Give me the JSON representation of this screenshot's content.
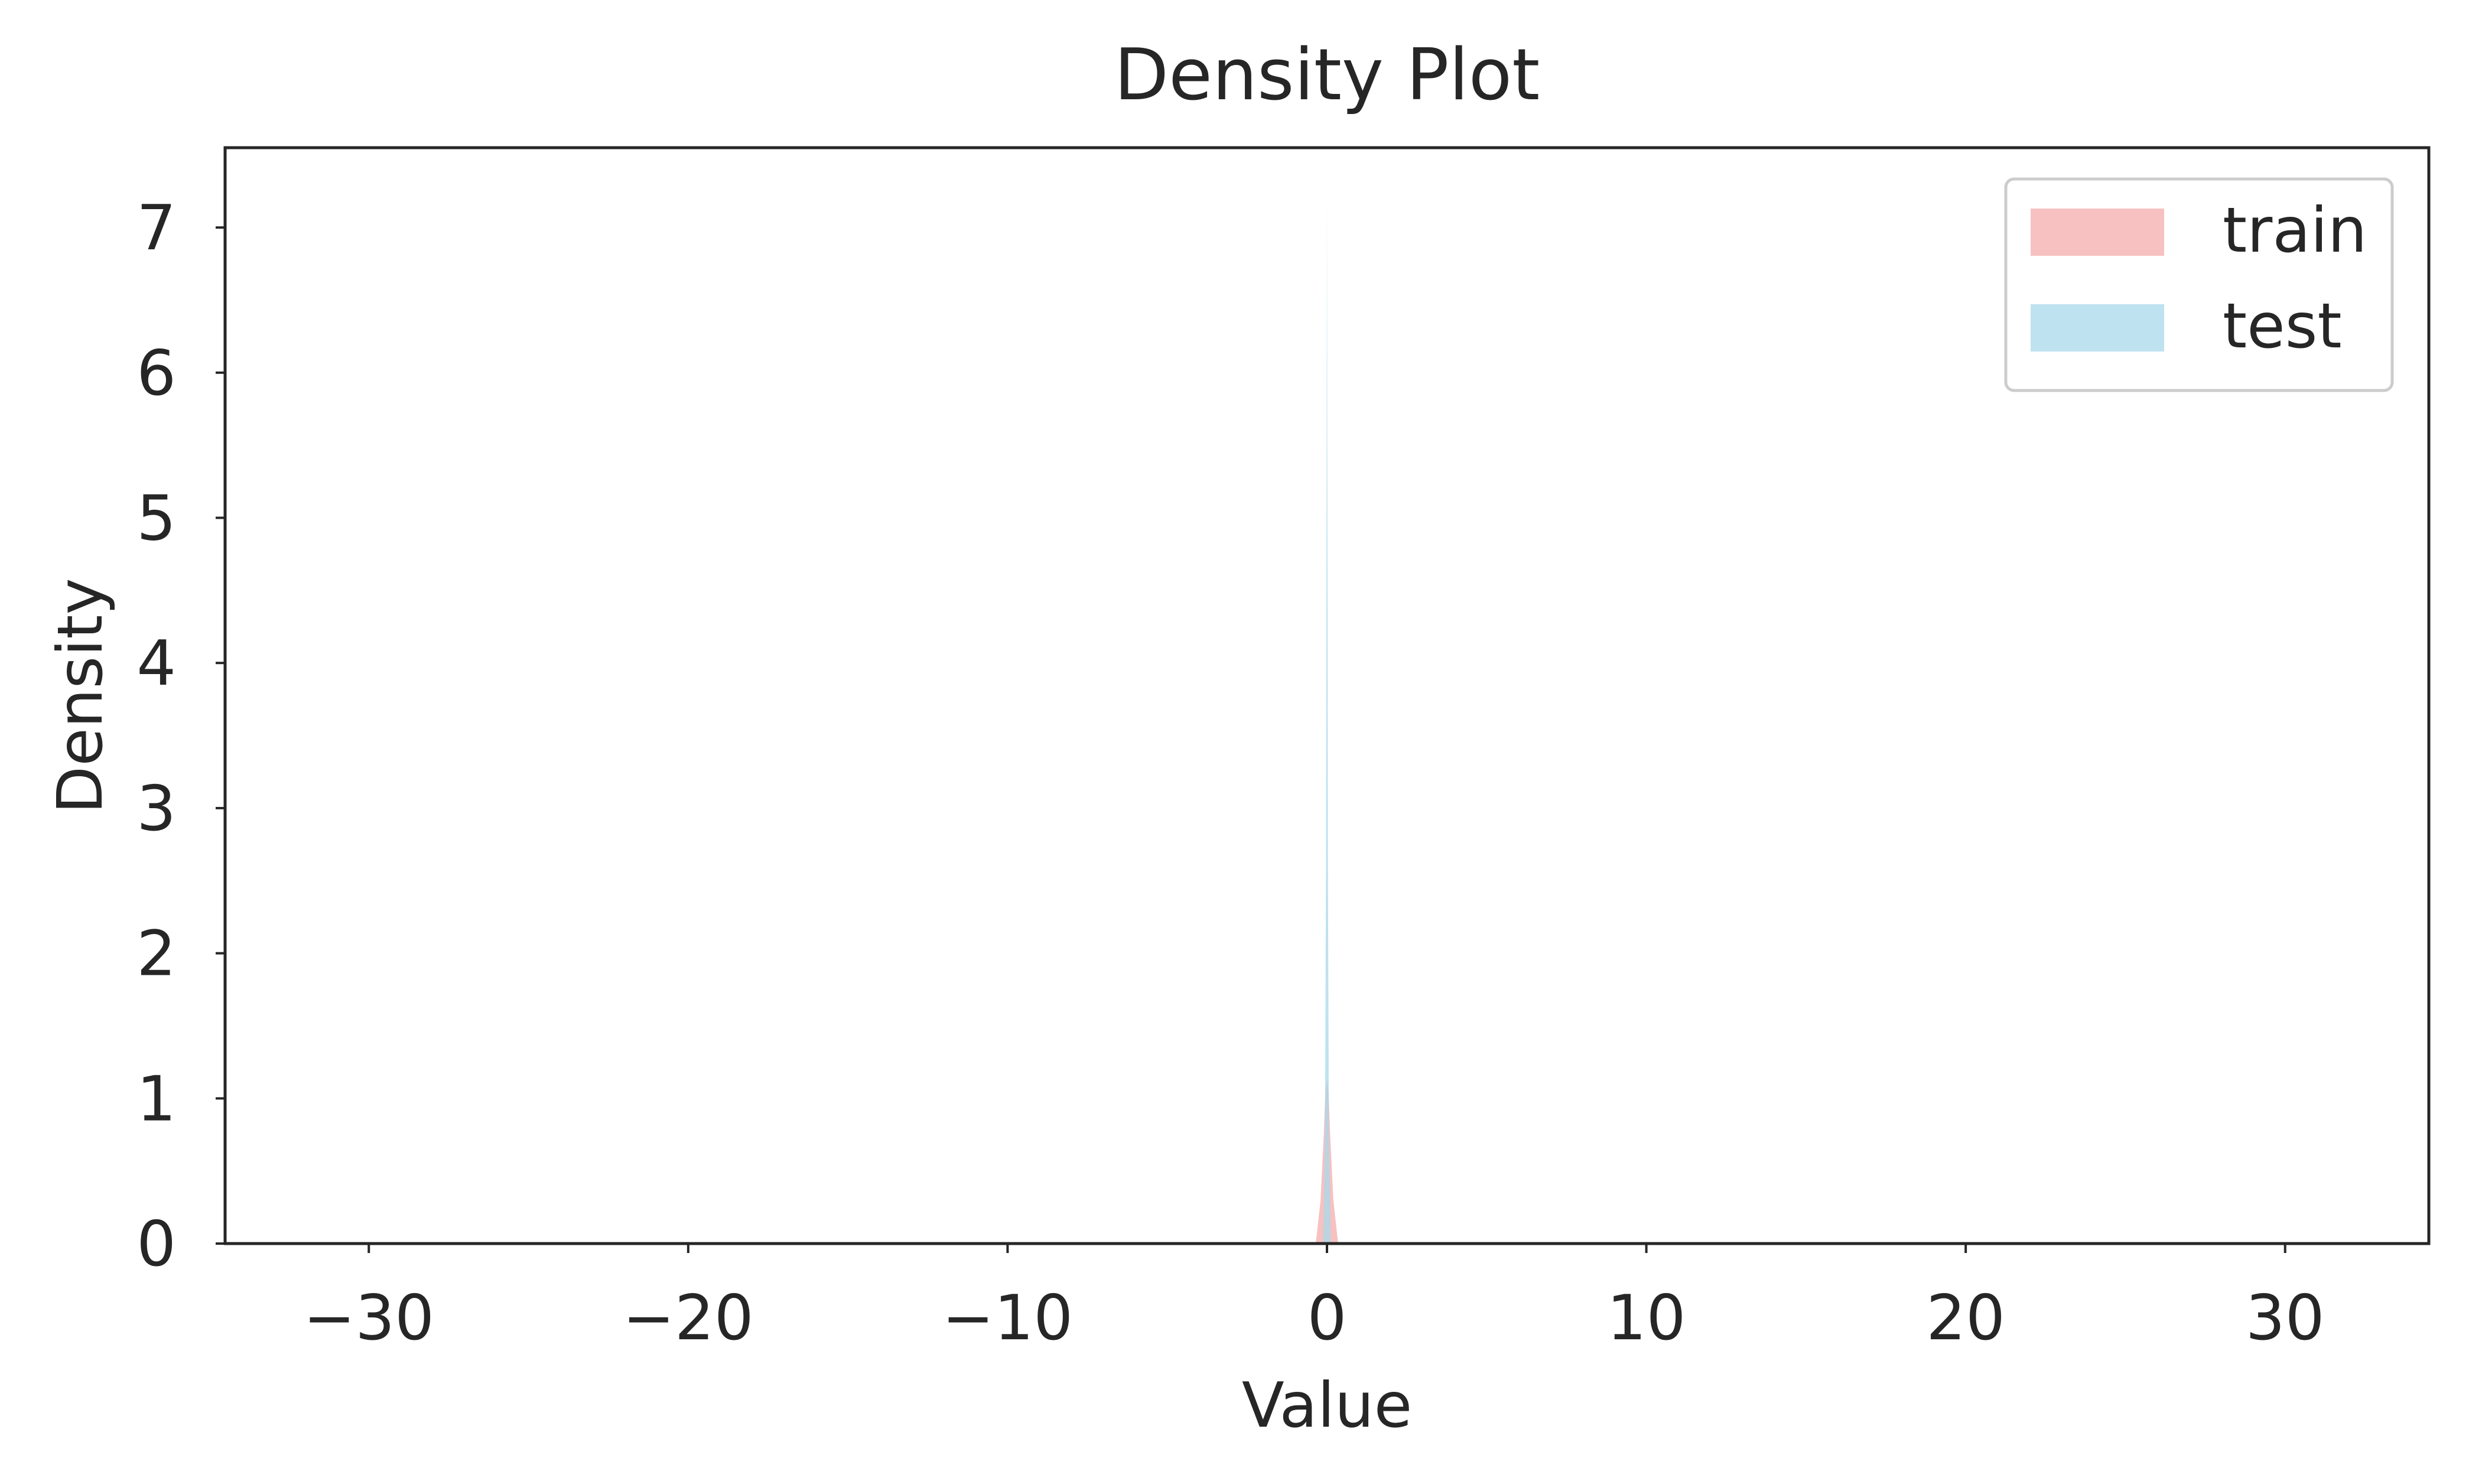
{
  "chart_data": {
    "type": "area",
    "title": "Density Plot",
    "xlabel": "Value",
    "ylabel": "Density",
    "xlim": [
      -34.5,
      34.5
    ],
    "ylim": [
      0,
      7.55
    ],
    "xticks": [
      -30,
      -20,
      -10,
      0,
      10,
      20,
      30
    ],
    "xtick_labels": [
      "−30",
      "−20",
      "−10",
      "0",
      "10",
      "20",
      "30"
    ],
    "yticks": [
      0,
      1,
      2,
      3,
      4,
      5,
      6,
      7
    ],
    "ytick_labels": [
      "0",
      "1",
      "2",
      "3",
      "4",
      "5",
      "6",
      "7"
    ],
    "grid": false,
    "legend_position": "top-right",
    "series": [
      {
        "name": "train",
        "color": "#f4a6a6",
        "opacity": 0.7,
        "x": [
          -0.35,
          -0.2,
          -0.1,
          -0.05,
          0.0,
          0.05,
          0.1,
          0.2,
          0.35
        ],
        "y": [
          0.0,
          0.3,
          0.75,
          1.05,
          1.12,
          1.05,
          0.75,
          0.3,
          0.0
        ]
      },
      {
        "name": "test",
        "color": "#a8d8ea",
        "opacity": 0.75,
        "x": [
          -0.12,
          -0.06,
          -0.03,
          -0.01,
          0.0,
          0.01,
          0.03,
          0.06,
          0.12
        ],
        "y": [
          0.0,
          0.8,
          2.6,
          5.6,
          7.2,
          5.6,
          2.6,
          0.8,
          0.0
        ]
      }
    ]
  }
}
